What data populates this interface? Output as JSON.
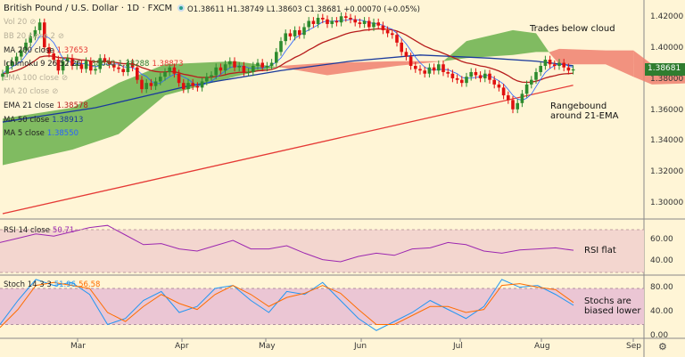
{
  "header": {
    "title": "British Pound / U.S. Dollar · 1D · FXCM",
    "open": "O1.38611",
    "high": "H1.38749",
    "low": "L1.38603",
    "close": "C1.38681",
    "change": "+0.00070 (+0.05%)"
  },
  "legend": {
    "vol": "Vol 20",
    "bb": "BB 20 close 2",
    "ma200": {
      "label": "MA 200 close",
      "value": "1.37653"
    },
    "ichimoku": {
      "label": "Ichimoku 9 26 52 26",
      "v1": "1.38680",
      "v2": "1.38288",
      "v3": "1.38873"
    },
    "ema": "EMA 100 close",
    "ma": "MA 20 close",
    "ema21": {
      "label": "EMA 21 close",
      "value": "1.38578"
    },
    "ma50": {
      "label": "MA 50 close",
      "value": "1.38913"
    },
    "ma5": {
      "label": "MA 5 close",
      "value": "1.38550"
    }
  },
  "annotations": {
    "cloud": "Trades below cloud",
    "range1": "Rangebound",
    "range2": "around 21-EMA",
    "rsi": "RSI flat",
    "stoch1": "Stochs are",
    "stoch2": "biased lower"
  },
  "rsi_legend": {
    "label": "RSI 14 close",
    "value": "50.71"
  },
  "stoch_legend": {
    "label": "Stoch 14 3 3",
    "k": "51.96",
    "d": "56.58"
  },
  "current_price": "1.38681",
  "colors": {
    "up": "#2e8b2e",
    "down": "#e01010",
    "cloud_bull": "#6ab04c",
    "cloud_bear": "#f08070",
    "ma200": "#e53935",
    "ma50": "#1a3a9c",
    "ema21": "#b71c1c",
    "ma5": "#2962ff",
    "rsi": "#9c27b0",
    "stoch_k": "#2196f3",
    "stoch_d": "#ff6d00"
  },
  "chart_data": {
    "type": "candlestick",
    "title": "British Pound / U.S. Dollar · 1D · FXCM",
    "price_ticks": [
      "1.42000",
      "1.40000",
      "1.38000",
      "1.36000",
      "1.34000",
      "1.32000",
      "1.30000"
    ],
    "ylim": [
      1.2935,
      1.4284
    ],
    "time_ticks": [
      "Mar",
      "Apr",
      "May",
      "Jun",
      "Jul",
      "Aug",
      "Sep"
    ],
    "closes": [
      1.384,
      1.389,
      1.392,
      1.395,
      1.399,
      1.404,
      1.408,
      1.412,
      1.417,
      1.401,
      1.397,
      1.393,
      1.386,
      1.392,
      1.394,
      1.389,
      1.39,
      1.387,
      1.392,
      1.386,
      1.387,
      1.394,
      1.392,
      1.39,
      1.388,
      1.387,
      1.385,
      1.391,
      1.388,
      1.38,
      1.374,
      1.378,
      1.376,
      1.379,
      1.382,
      1.385,
      1.388,
      1.384,
      1.378,
      1.374,
      1.378,
      1.376,
      1.375,
      1.379,
      1.382,
      1.383,
      1.388,
      1.386,
      1.39,
      1.392,
      1.388,
      1.389,
      1.385,
      1.385,
      1.389,
      1.391,
      1.388,
      1.389,
      1.391,
      1.398,
      1.405,
      1.41,
      1.408,
      1.412,
      1.409,
      1.414,
      1.418,
      1.416,
      1.42,
      1.419,
      1.416,
      1.418,
      1.417,
      1.421,
      1.42,
      1.419,
      1.417,
      1.416,
      1.418,
      1.414,
      1.417,
      1.415,
      1.412,
      1.41,
      1.409,
      1.404,
      1.398,
      1.395,
      1.389,
      1.387,
      1.386,
      1.384,
      1.388,
      1.386,
      1.39,
      1.385,
      1.384,
      1.381,
      1.38,
      1.378,
      1.382,
      1.385,
      1.383,
      1.381,
      1.384,
      1.38,
      1.377,
      1.375,
      1.37,
      1.367,
      1.361,
      1.365,
      1.371,
      1.377,
      1.38,
      1.385,
      1.389,
      1.393,
      1.39,
      1.389,
      1.391,
      1.388,
      1.386,
      1.3868
    ],
    "ma200": [
      [
        0,
        1.2937
      ],
      [
        123,
        1.3765
      ]
    ],
    "ma50": [
      [
        0,
        1.3528
      ],
      [
        20,
        1.362
      ],
      [
        40,
        1.376
      ],
      [
        60,
        1.386
      ],
      [
        75,
        1.392
      ],
      [
        90,
        1.396
      ],
      [
        105,
        1.394
      ],
      [
        115,
        1.392
      ],
      [
        123,
        1.3891
      ]
    ],
    "cloud": [
      [
        0,
        1.355,
        1.325
      ],
      [
        15,
        1.362,
        1.335
      ],
      [
        25,
        1.378,
        1.345
      ],
      [
        35,
        1.39,
        1.37
      ],
      [
        50,
        1.392,
        1.382
      ],
      [
        60,
        1.388,
        1.389
      ],
      [
        70,
        1.383,
        1.391
      ],
      [
        85,
        1.389,
        1.392
      ],
      [
        95,
        1.392,
        1.392
      ],
      [
        100,
        1.405,
        1.394
      ],
      [
        110,
        1.412,
        1.396
      ],
      [
        115,
        1.41,
        1.398
      ],
      [
        118,
        1.397,
        1.398
      ],
      [
        120,
        1.39,
        1.4
      ],
      [
        130,
        1.39,
        1.399
      ],
      [
        136,
        1.382,
        1.399
      ],
      [
        140,
        1.377,
        1.39
      ],
      [
        150,
        1.378,
        1.39
      ]
    ],
    "rsi": {
      "ylim": [
        30,
        75
      ],
      "ticks": [
        "60.00",
        "40.00"
      ],
      "values": [
        58,
        62,
        66,
        64,
        68,
        72,
        74,
        65,
        56,
        57,
        52,
        50,
        55,
        60,
        52,
        52,
        55,
        48,
        42,
        40,
        45,
        48,
        46,
        52,
        53,
        58,
        56,
        50,
        48,
        51,
        52,
        53,
        50.7
      ]
    },
    "stoch": {
      "ylim": [
        0,
        100
      ],
      "ticks": [
        "80.00",
        "40.00",
        "0.00"
      ],
      "k": [
        20,
        60,
        95,
        85,
        90,
        70,
        20,
        30,
        60,
        75,
        40,
        50,
        80,
        85,
        60,
        40,
        75,
        70,
        90,
        60,
        30,
        10,
        25,
        40,
        60,
        45,
        30,
        50,
        95,
        82,
        85,
        70,
        52
      ],
      "d": [
        15,
        45,
        85,
        90,
        85,
        80,
        40,
        25,
        50,
        70,
        55,
        45,
        70,
        85,
        70,
        50,
        65,
        72,
        85,
        72,
        45,
        20,
        20,
        35,
        50,
        50,
        40,
        45,
        85,
        88,
        82,
        78,
        56.6
      ]
    }
  }
}
